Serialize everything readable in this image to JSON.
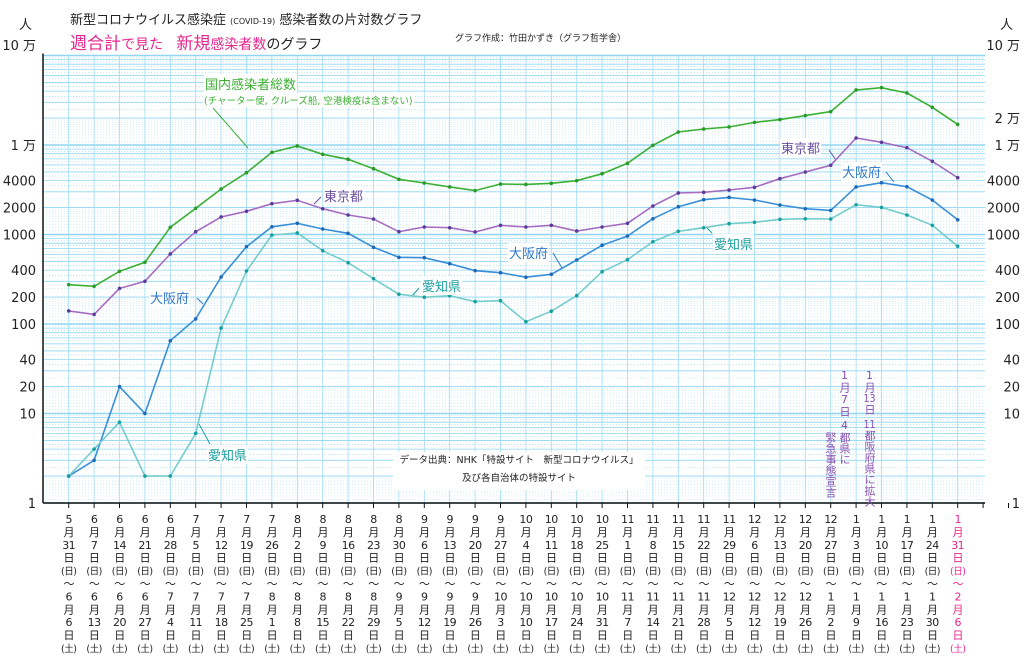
{
  "header": {
    "title_main": "新型コロナウイルス感染症",
    "title_covid": "(COVID-19)",
    "title_tail": "感染者数の片対数グラフ",
    "subtitle_part1": "週合計",
    "subtitle_part2": "で見た",
    "subtitle_part3": "新規",
    "subtitle_part4": "感染者数",
    "subtitle_part5": "のグラフ",
    "credit": "グラフ作成：竹田かずき（グラフ哲学舎）",
    "accent_color": "#e8268f"
  },
  "annotations": {
    "national_label": "国内感染者総数",
    "national_note": "(チャーター便, クルーズ船, 空港検疫は含まない)",
    "tokyo": "東京都",
    "osaka": "大阪府",
    "aichi": "愛知県",
    "event1_date": "1月7日",
    "event1_text1": "4都県に",
    "event1_text2": "緊急事態宣言",
    "event2_date": "1月13日",
    "event2_text": "11都阪府県に拡大",
    "source_line1": "データ出典：NHK「特設サイト　新型コロナウイルス」",
    "source_line2": "及び各自治体の特設サイト"
  },
  "chart_data": {
    "type": "line",
    "title": "新型コロナウイルス感染症 (COVID-19) 感染者数の片対数グラフ",
    "subtitle": "週合計で見た　新規感染者数のグラフ",
    "ylabel": "人",
    "yscale": "log",
    "ylim": [
      1,
      100000
    ],
    "grid": true,
    "y_ticks_left": [
      {
        "value": 100000,
        "label": "10 万"
      },
      {
        "value": 10000,
        "label": "1 万"
      },
      {
        "value": 4000,
        "label": "4000"
      },
      {
        "value": 2000,
        "label": "2000"
      },
      {
        "value": 1000,
        "label": "1000"
      },
      {
        "value": 400,
        "label": "400"
      },
      {
        "value": 200,
        "label": "200"
      },
      {
        "value": 100,
        "label": "100"
      },
      {
        "value": 40,
        "label": "40"
      },
      {
        "value": 20,
        "label": "20"
      },
      {
        "value": 10,
        "label": "10"
      },
      {
        "value": 1,
        "label": "1"
      }
    ],
    "y_ticks_right": [
      {
        "value": 100000,
        "label": "10 万"
      },
      {
        "value": 20000,
        "label": "2 万"
      },
      {
        "value": 10000,
        "label": "1 万"
      },
      {
        "value": 4000,
        "label": "4000"
      },
      {
        "value": 2000,
        "label": "2000"
      },
      {
        "value": 1000,
        "label": "1000"
      },
      {
        "value": 400,
        "label": "400"
      },
      {
        "value": 200,
        "label": "200"
      },
      {
        "value": 100,
        "label": "100"
      },
      {
        "value": 40,
        "label": "40"
      },
      {
        "value": 20,
        "label": "20"
      },
      {
        "value": 10,
        "label": "10"
      },
      {
        "value": 1,
        "label": "1"
      }
    ],
    "label_parts": {
      "month": "月",
      "day": "日",
      "sun": "(日)",
      "tilde": "〜",
      "sat": "(土)"
    },
    "highlight_color": "#e8268f",
    "categories": [
      {
        "sm": "5",
        "sd": "31",
        "em": "6",
        "ed": "6"
      },
      {
        "sm": "6",
        "sd": "7",
        "em": "6",
        "ed": "13"
      },
      {
        "sm": "6",
        "sd": "14",
        "em": "6",
        "ed": "20"
      },
      {
        "sm": "6",
        "sd": "21",
        "em": "6",
        "ed": "27"
      },
      {
        "sm": "6",
        "sd": "28",
        "em": "7",
        "ed": "4"
      },
      {
        "sm": "7",
        "sd": "5",
        "em": "7",
        "ed": "11"
      },
      {
        "sm": "7",
        "sd": "12",
        "em": "7",
        "ed": "18"
      },
      {
        "sm": "7",
        "sd": "19",
        "em": "7",
        "ed": "25"
      },
      {
        "sm": "7",
        "sd": "26",
        "em": "8",
        "ed": "1"
      },
      {
        "sm": "8",
        "sd": "2",
        "em": "8",
        "ed": "8"
      },
      {
        "sm": "8",
        "sd": "9",
        "em": "8",
        "ed": "15"
      },
      {
        "sm": "8",
        "sd": "16",
        "em": "8",
        "ed": "22"
      },
      {
        "sm": "8",
        "sd": "23",
        "em": "8",
        "ed": "29"
      },
      {
        "sm": "8",
        "sd": "30",
        "em": "9",
        "ed": "5"
      },
      {
        "sm": "9",
        "sd": "6",
        "em": "9",
        "ed": "12"
      },
      {
        "sm": "9",
        "sd": "13",
        "em": "9",
        "ed": "19"
      },
      {
        "sm": "9",
        "sd": "20",
        "em": "9",
        "ed": "26"
      },
      {
        "sm": "9",
        "sd": "27",
        "em": "10",
        "ed": "3"
      },
      {
        "sm": "10",
        "sd": "4",
        "em": "10",
        "ed": "10"
      },
      {
        "sm": "10",
        "sd": "11",
        "em": "10",
        "ed": "17"
      },
      {
        "sm": "10",
        "sd": "18",
        "em": "10",
        "ed": "24"
      },
      {
        "sm": "10",
        "sd": "25",
        "em": "10",
        "ed": "31"
      },
      {
        "sm": "11",
        "sd": "1",
        "em": "11",
        "ed": "7"
      },
      {
        "sm": "11",
        "sd": "8",
        "em": "11",
        "ed": "14"
      },
      {
        "sm": "11",
        "sd": "15",
        "em": "11",
        "ed": "21"
      },
      {
        "sm": "11",
        "sd": "22",
        "em": "11",
        "ed": "28"
      },
      {
        "sm": "11",
        "sd": "29",
        "em": "12",
        "ed": "5"
      },
      {
        "sm": "12",
        "sd": "6",
        "em": "12",
        "ed": "12"
      },
      {
        "sm": "12",
        "sd": "13",
        "em": "12",
        "ed": "19"
      },
      {
        "sm": "12",
        "sd": "20",
        "em": "12",
        "ed": "26"
      },
      {
        "sm": "12",
        "sd": "27",
        "em": "1",
        "ed": "2"
      },
      {
        "sm": "1",
        "sd": "3",
        "em": "1",
        "ed": "9"
      },
      {
        "sm": "1",
        "sd": "10",
        "em": "1",
        "ed": "16"
      },
      {
        "sm": "1",
        "sd": "17",
        "em": "1",
        "ed": "23"
      },
      {
        "sm": "1",
        "sd": "24",
        "em": "1",
        "ed": "30"
      },
      {
        "sm": "1",
        "sd": "31",
        "em": "2",
        "ed": "6",
        "highlight": true
      }
    ],
    "series": [
      {
        "name": "国内感染者総数",
        "color": "#3cb034",
        "marker": "#2a9a2a",
        "values": [
          275,
          264,
          388,
          489,
          1203,
          1963,
          3222,
          4900,
          8280,
          9750,
          7870,
          6920,
          5430,
          4140,
          3760,
          3400,
          3090,
          3665,
          3630,
          3730,
          3990,
          4780,
          6240,
          9930,
          13970,
          15100,
          15900,
          17900,
          19200,
          21300,
          23600,
          41200,
          43700,
          38100,
          26400,
          17000
        ]
      },
      {
        "name": "東京都",
        "color": "#a56cc1",
        "marker": "#5a3d9a",
        "values": [
          140,
          128,
          250,
          300,
          606,
          1075,
          1570,
          1816,
          2210,
          2410,
          1940,
          1650,
          1490,
          1075,
          1213,
          1190,
          1067,
          1268,
          1213,
          1268,
          1095,
          1213,
          1335,
          2080,
          2910,
          2960,
          3140,
          3370,
          4200,
          4990,
          5930,
          11970,
          10720,
          9330,
          6580,
          4310
        ]
      },
      {
        "name": "大阪府",
        "color": "#3a8fd8",
        "marker": "#1f6ab8",
        "values": [
          2,
          3,
          20,
          10,
          65,
          114,
          335,
          731,
          1220,
          1335,
          1152,
          1031,
          719,
          556,
          551,
          472,
          394,
          374,
          333,
          359,
          519,
          757,
          962,
          1500,
          2045,
          2450,
          2600,
          2430,
          2135,
          1940,
          1860,
          3400,
          3790,
          3420,
          2430,
          1460
        ]
      },
      {
        "name": "愛知県",
        "color": "#74cccc",
        "marker": "#17a0a0",
        "values": [
          2,
          4,
          8,
          2,
          2,
          6,
          90,
          391,
          987,
          1040,
          659,
          484,
          321,
          215,
          199,
          207,
          178,
          182,
          106,
          139,
          207,
          384,
          523,
          831,
          1086,
          1190,
          1320,
          1370,
          1480,
          1500,
          1490,
          2150,
          2010,
          1650,
          1267,
          738
        ]
      }
    ]
  }
}
